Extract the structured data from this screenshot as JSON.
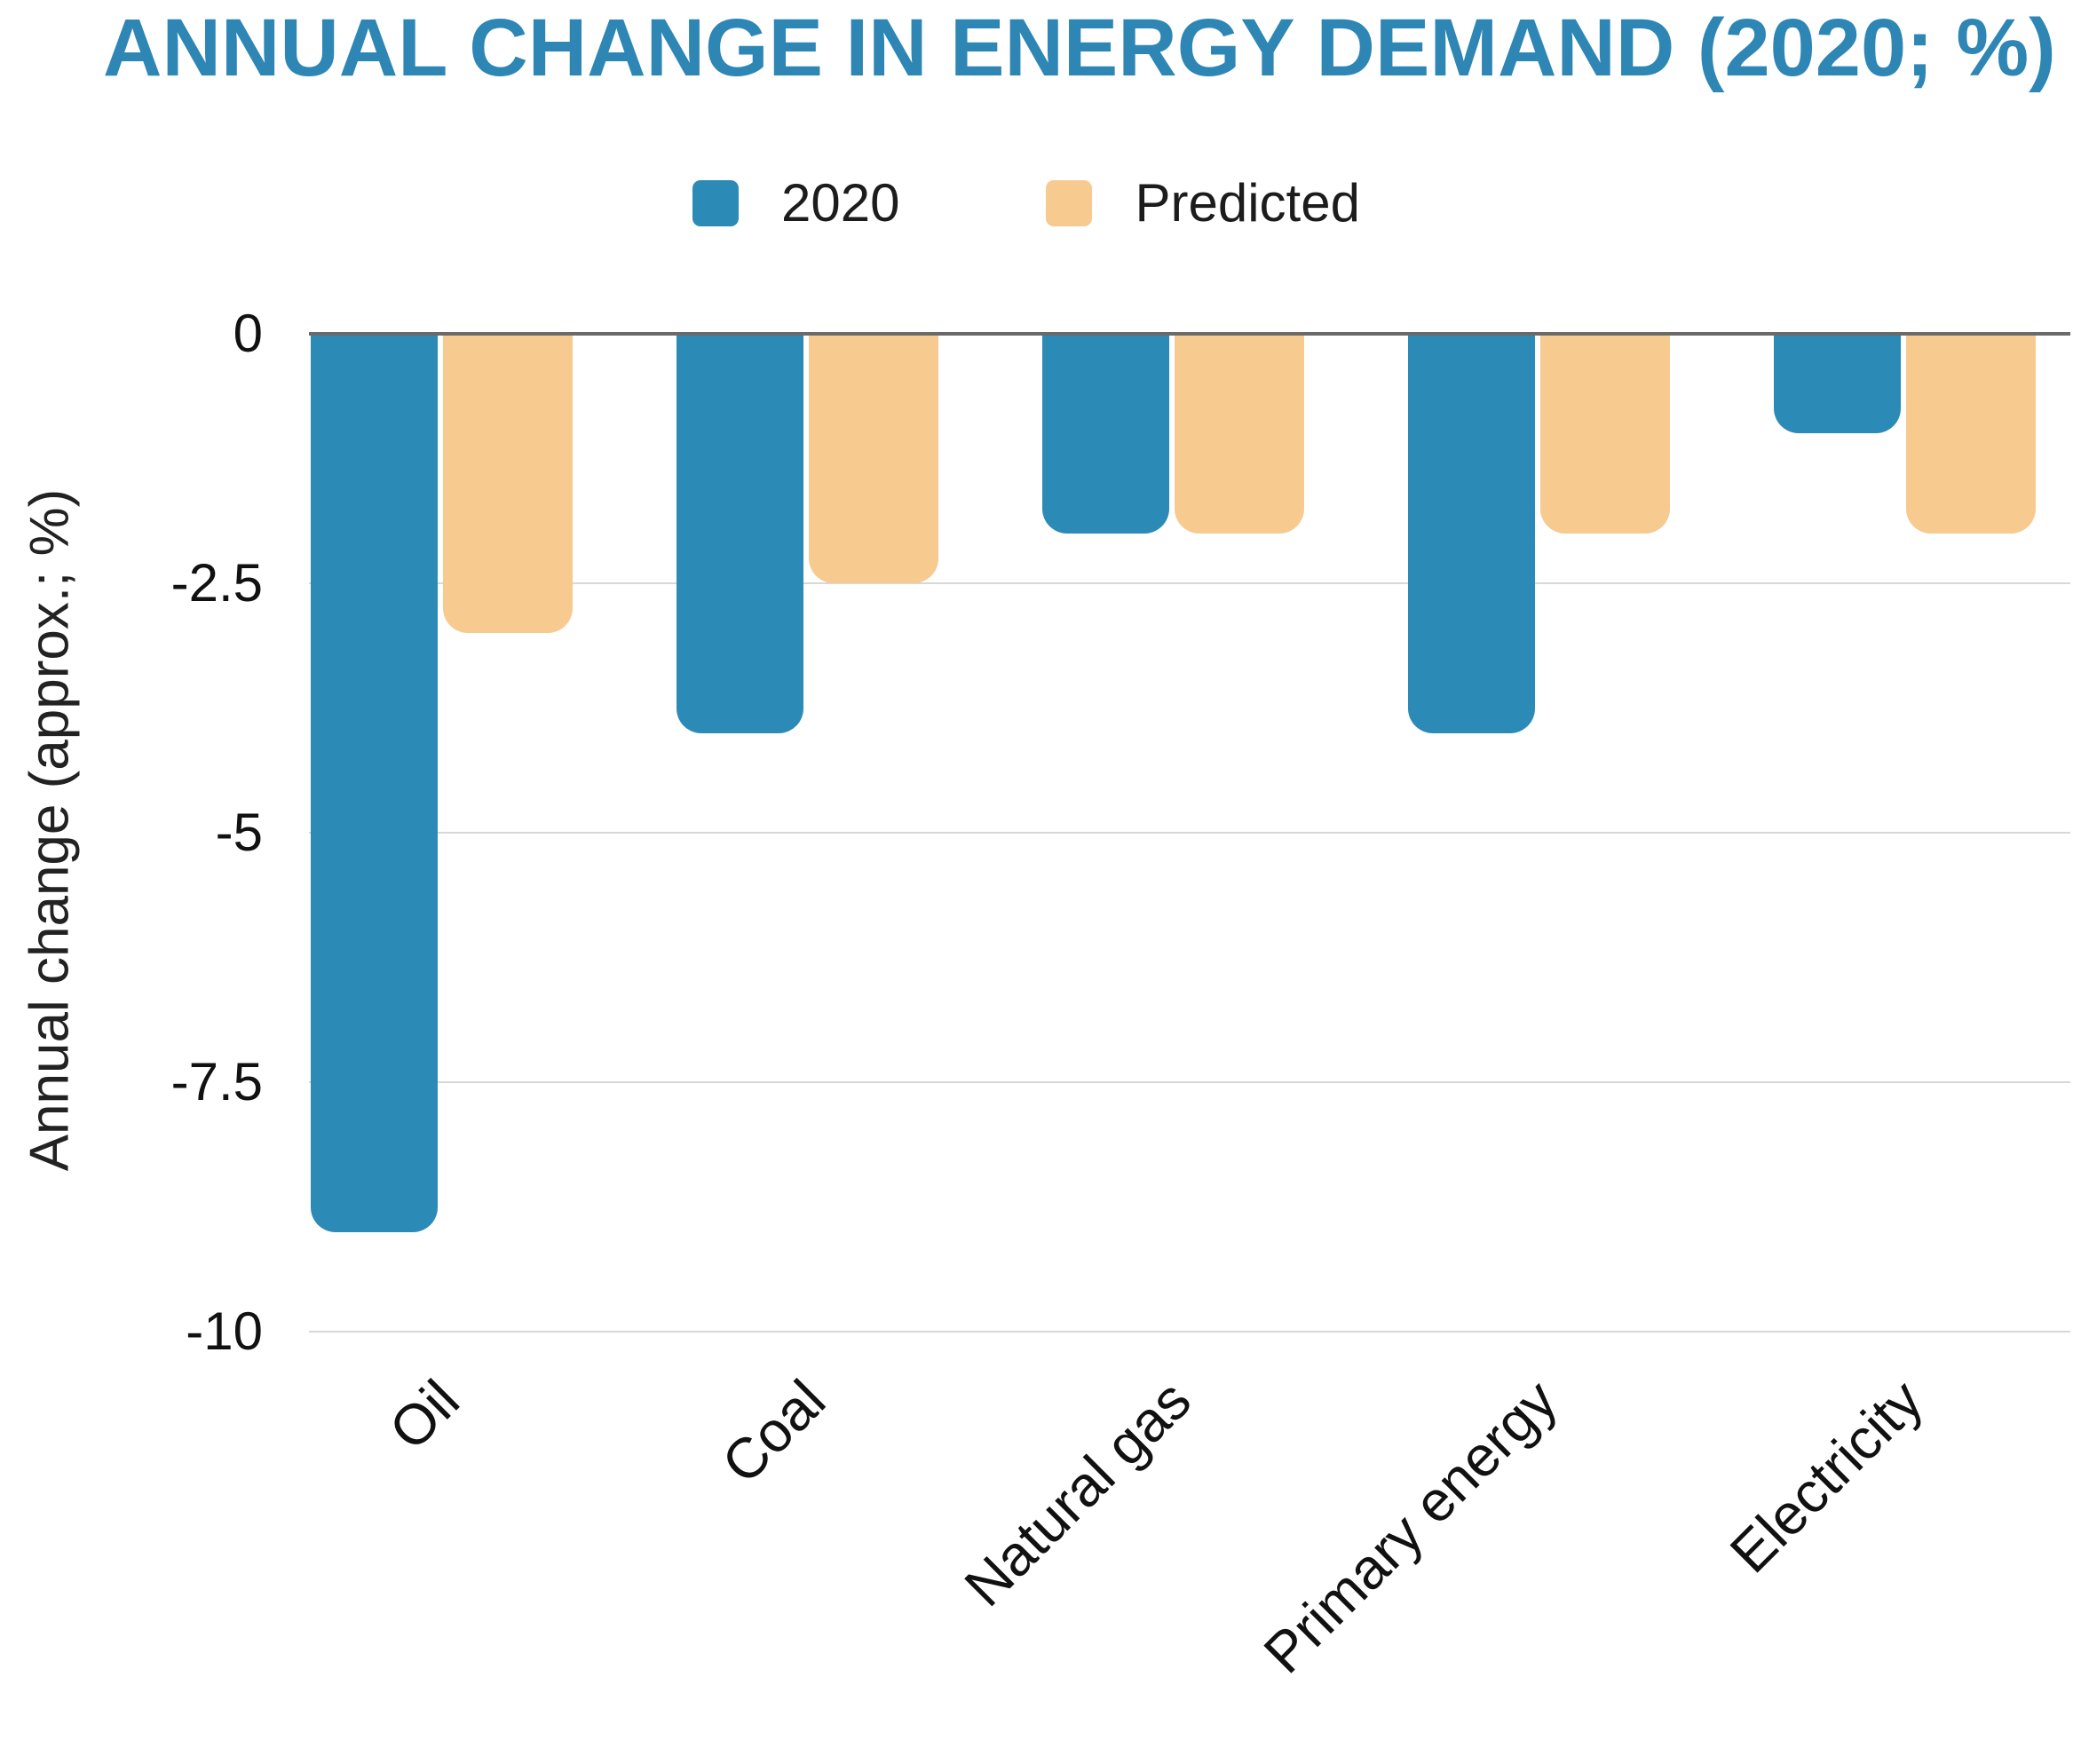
{
  "title": {
    "text": "ANNUAL CHANGE IN ENERGY DEMAND (2020; %)",
    "color": "#2E86B5"
  },
  "chart_data": {
    "type": "bar",
    "title": "ANNUAL CHANGE IN ENERGY DEMAND (2020; %)",
    "categories": [
      "Oil",
      "Coal",
      "Natural gas",
      "Primary energy",
      "Electricity"
    ],
    "series": [
      {
        "name": "2020",
        "color": "#2C8AB7",
        "values": [
          -9,
          -4,
          -2,
          -4,
          -1
        ]
      },
      {
        "name": "Predicted",
        "color": "#F7CA90",
        "values": [
          -3,
          -2.5,
          -2,
          -2,
          -2
        ]
      }
    ],
    "xlabel": "",
    "ylabel": "Annual change (approx.; %)",
    "ylim": [
      -10,
      0
    ],
    "yticks": [
      0,
      -2.5,
      -5,
      -7.5,
      -10
    ],
    "ytick_labels": [
      "0",
      "-2.5",
      "-5",
      "-7.5",
      "-10"
    ],
    "grid": true,
    "legend_position": "top-center",
    "colors": {
      "title": "#2E86B5",
      "zero_line": "#6A6A6A",
      "gridline": "#D8D8D8",
      "tick_text": "#111111",
      "axis_label_text": "#222222",
      "legend_text": "#1c1c1c",
      "background": "#FFFFFF"
    }
  }
}
